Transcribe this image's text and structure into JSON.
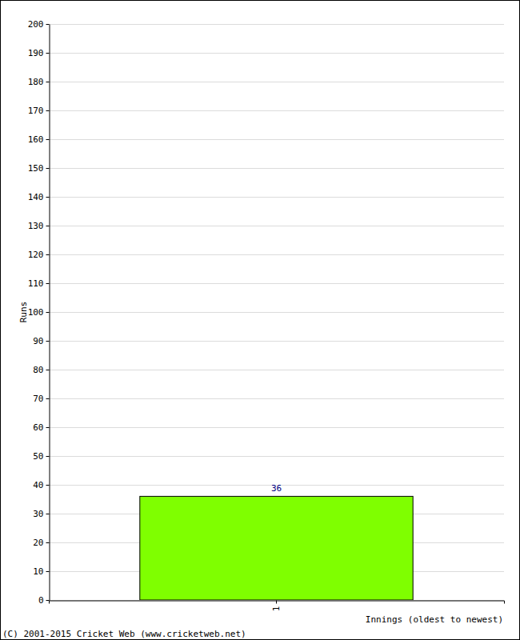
{
  "chart_data": {
    "type": "bar",
    "x_label": "Innings (oldest to newest)",
    "y_label": "Runs",
    "annotations": [
      "(C) 2001-2015 Cricket Web (www.cricketweb.net)"
    ],
    "categories": [
      "1"
    ],
    "values": [
      36
    ],
    "color": "#7fff00",
    "ylim": [
      0,
      200
    ],
    "yticks": [
      0,
      10,
      20,
      30,
      40,
      50,
      60,
      70,
      80,
      90,
      100,
      110,
      120,
      130,
      140,
      150,
      160,
      170,
      180,
      190,
      200
    ],
    "grid": true,
    "data_labels": true
  }
}
